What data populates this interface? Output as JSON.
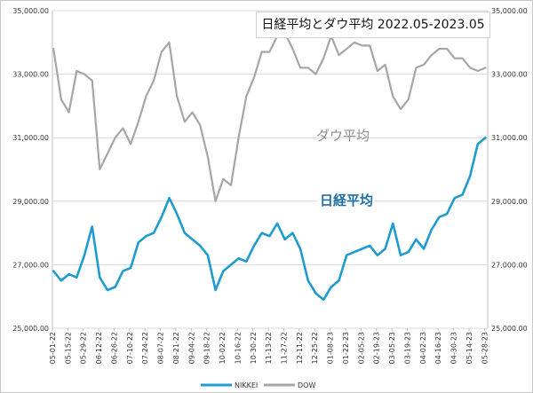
{
  "chart_data": {
    "type": "line",
    "title": "日経平均とダウ平均 2022.05-2023.05",
    "annotations": {
      "dow": "ダウ平均",
      "nikkei": "日経平均"
    },
    "ylim": [
      25000,
      35000
    ],
    "yticks_left": [
      "25,000.00",
      "27,000.00",
      "29,000.00",
      "31,000.00",
      "33,000.00",
      "35,000.00"
    ],
    "yticks_right": [
      "25,000.00",
      "27,000.00",
      "29,000.00",
      "31,000.00",
      "33,000.00",
      "35,000.00"
    ],
    "ytick_values": [
      25000,
      27000,
      29000,
      31000,
      33000,
      35000
    ],
    "xticks": [
      "05-01-22",
      "05-15-22",
      "05-29-22",
      "06-12-22",
      "06-26-22",
      "07-10-22",
      "07-24-22",
      "08-07-22",
      "08-21-22",
      "09-04-22",
      "09-18-22",
      "10-02-22",
      "10-16-22",
      "10-30-22",
      "11-13-22",
      "11-27-22",
      "12-11-22",
      "12-25-22",
      "01-08-23",
      "01-22-23",
      "02-05-23",
      "02-19-23",
      "03-05-23",
      "03-19-23",
      "04-02-23",
      "04-16-23",
      "04-30-23",
      "05-14-23",
      "05-28-23"
    ],
    "grid": "horizontal",
    "legend_position": "bottom",
    "colors": {
      "nikkei": "#1f9bcf",
      "dow": "#a6a6a6"
    },
    "series": [
      {
        "name": "NIKKEI",
        "x": [
          "05-02-22",
          "05-09-22",
          "05-16-22",
          "05-23-22",
          "05-30-22",
          "06-06-22",
          "06-13-22",
          "06-20-22",
          "06-27-22",
          "07-04-22",
          "07-11-22",
          "07-18-22",
          "07-25-22",
          "08-01-22",
          "08-08-22",
          "08-15-22",
          "08-22-22",
          "08-29-22",
          "09-05-22",
          "09-12-22",
          "09-19-22",
          "09-26-22",
          "10-03-22",
          "10-10-22",
          "10-17-22",
          "10-24-22",
          "10-31-22",
          "11-07-22",
          "11-14-22",
          "11-21-22",
          "11-28-22",
          "12-05-22",
          "12-12-22",
          "12-19-22",
          "12-26-22",
          "01-02-23",
          "01-09-23",
          "01-16-23",
          "01-23-23",
          "01-30-23",
          "02-06-23",
          "02-13-23",
          "02-20-23",
          "02-27-23",
          "03-06-23",
          "03-13-23",
          "03-20-23",
          "03-27-23",
          "04-03-23",
          "04-10-23",
          "04-17-23",
          "04-24-23",
          "05-01-23",
          "05-08-23",
          "05-15-23",
          "05-22-23",
          "05-29-23"
        ],
        "values": [
          26800,
          26500,
          26700,
          26600,
          27300,
          28200,
          26600,
          26200,
          26300,
          26800,
          26900,
          27700,
          27900,
          28000,
          28500,
          29100,
          28600,
          28000,
          27800,
          27600,
          27300,
          26200,
          26800,
          27000,
          27200,
          27100,
          27600,
          28000,
          27900,
          28300,
          27800,
          28000,
          27500,
          26500,
          26100,
          25900,
          26300,
          26500,
          27300,
          27400,
          27500,
          27600,
          27300,
          27500,
          28300,
          27300,
          27400,
          27800,
          27500,
          28100,
          28500,
          28600,
          29100,
          29200,
          29800,
          30800,
          31000
        ]
      },
      {
        "name": "DOW",
        "x": [
          "05-02-22",
          "05-09-22",
          "05-16-22",
          "05-23-22",
          "05-30-22",
          "06-06-22",
          "06-13-22",
          "06-20-22",
          "06-27-22",
          "07-04-22",
          "07-11-22",
          "07-18-22",
          "07-25-22",
          "08-01-22",
          "08-08-22",
          "08-15-22",
          "08-22-22",
          "08-29-22",
          "09-05-22",
          "09-12-22",
          "09-19-22",
          "09-26-22",
          "10-03-22",
          "10-10-22",
          "10-17-22",
          "10-24-22",
          "10-31-22",
          "11-07-22",
          "11-14-22",
          "11-21-22",
          "11-28-22",
          "12-05-22",
          "12-12-22",
          "12-19-22",
          "12-26-22",
          "01-02-23",
          "01-09-23",
          "01-16-23",
          "01-23-23",
          "01-30-23",
          "02-06-23",
          "02-13-23",
          "02-20-23",
          "02-27-23",
          "03-06-23",
          "03-13-23",
          "03-20-23",
          "03-27-23",
          "04-03-23",
          "04-10-23",
          "04-17-23",
          "04-24-23",
          "05-01-23",
          "05-08-23",
          "05-15-23",
          "05-22-23",
          "05-29-23"
        ],
        "values": [
          33800,
          32200,
          31800,
          33100,
          33000,
          32800,
          30000,
          30500,
          31000,
          31300,
          30800,
          31500,
          32300,
          32800,
          33700,
          34000,
          32300,
          31500,
          31800,
          31400,
          30400,
          29000,
          29700,
          29500,
          31000,
          32300,
          32900,
          33700,
          33700,
          34200,
          34300,
          33800,
          33200,
          33200,
          33000,
          33500,
          34200,
          33600,
          33800,
          34000,
          33900,
          33900,
          33100,
          33300,
          32300,
          31900,
          32200,
          33200,
          33300,
          33600,
          33800,
          33800,
          33500,
          33500,
          33200,
          33100,
          33200
        ]
      }
    ]
  },
  "legend": {
    "nikkei": "NIKKEI",
    "dow": "DOW"
  }
}
